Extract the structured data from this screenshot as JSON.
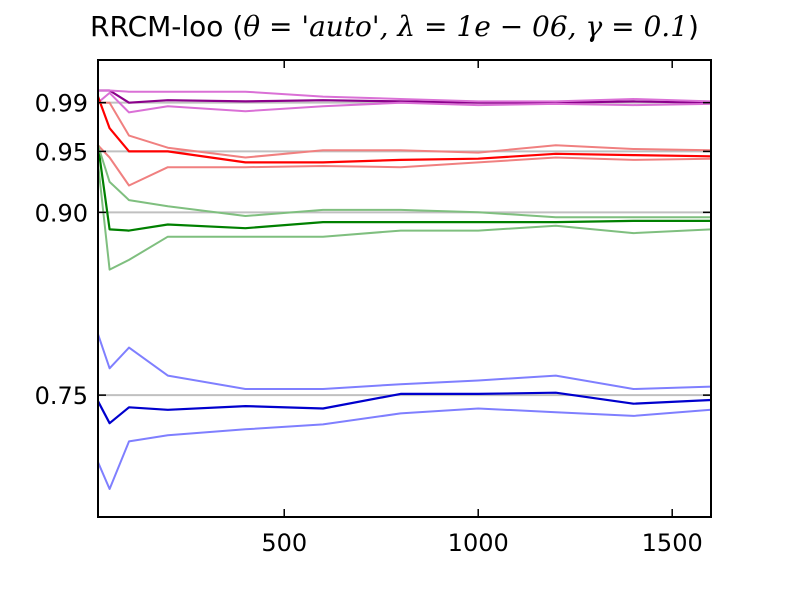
{
  "title": {
    "prefix": "RRCM-loo (",
    "math": "θ = 'auto', λ = 1e − 06, γ = 0.1",
    "suffix": ")"
  },
  "chart_data": {
    "type": "line",
    "title": "RRCM-loo (θ = 'auto', λ = 1e − 06, γ = 0.1)",
    "xlabel": "",
    "ylabel": "",
    "xlim": [
      20,
      1600
    ],
    "ylim": [
      0.65,
      1.025
    ],
    "x_ticks": [
      500,
      1000,
      1500
    ],
    "x_tick_labels": [
      "500",
      "1000",
      "1500"
    ],
    "y_ticks": [
      0.75,
      0.9,
      0.95,
      0.99
    ],
    "y_tick_labels": [
      "0.75",
      "0.90",
      "0.95",
      "0.99"
    ],
    "reference_lines": [
      0.75,
      0.9,
      0.95,
      0.99
    ],
    "grid": false,
    "x": [
      20,
      50,
      100,
      200,
      400,
      600,
      800,
      1000,
      1200,
      1400,
      1600
    ],
    "series": [
      {
        "color": "#8b008b",
        "opacity": 1.0,
        "width": 2.2,
        "values": [
          1.0,
          1.0,
          0.99,
          0.992,
          0.991,
          0.992,
          0.991,
          0.99,
          0.99,
          0.991,
          0.99
        ]
      },
      {
        "color": "#da70d6",
        "opacity": 1.0,
        "width": 2.0,
        "values": [
          1.0,
          1.0,
          0.999,
          0.999,
          0.999,
          0.995,
          0.993,
          0.991,
          0.991,
          0.993,
          0.991
        ]
      },
      {
        "color": "#da70d6",
        "opacity": 1.0,
        "width": 2.0,
        "values": [
          0.99,
          0.998,
          0.982,
          0.987,
          0.983,
          0.987,
          0.99,
          0.988,
          0.989,
          0.988,
          0.989
        ]
      },
      {
        "color": "#ff0000",
        "opacity": 1.0,
        "width": 2.2,
        "values": [
          0.995,
          0.969,
          0.95,
          0.95,
          0.941,
          0.941,
          0.943,
          0.944,
          0.948,
          0.947,
          0.946
        ]
      },
      {
        "color": "#f08080",
        "opacity": 1.0,
        "width": 2.0,
        "values": [
          0.99,
          0.99,
          0.963,
          0.953,
          0.945,
          0.951,
          0.951,
          0.949,
          0.955,
          0.952,
          0.951
        ]
      },
      {
        "color": "#f08080",
        "opacity": 1.0,
        "width": 2.0,
        "values": [
          0.955,
          0.945,
          0.922,
          0.937,
          0.937,
          0.938,
          0.937,
          0.941,
          0.945,
          0.943,
          0.944
        ]
      },
      {
        "color": "#008000",
        "opacity": 1.0,
        "width": 2.2,
        "values": [
          0.955,
          0.886,
          0.885,
          0.89,
          0.887,
          0.892,
          0.892,
          0.892,
          0.892,
          0.893,
          0.893
        ]
      },
      {
        "color": "#7fbf7f",
        "opacity": 1.0,
        "width": 2.0,
        "values": [
          0.955,
          0.925,
          0.91,
          0.905,
          0.897,
          0.902,
          0.902,
          0.9,
          0.896,
          0.896,
          0.896
        ]
      },
      {
        "color": "#7fbf7f",
        "opacity": 1.0,
        "width": 2.0,
        "values": [
          0.94,
          0.853,
          0.861,
          0.88,
          0.88,
          0.88,
          0.885,
          0.885,
          0.889,
          0.883,
          0.886
        ]
      },
      {
        "color": "#0000cd",
        "opacity": 1.0,
        "width": 2.2,
        "values": [
          0.745,
          0.727,
          0.74,
          0.738,
          0.741,
          0.739,
          0.751,
          0.751,
          0.752,
          0.743,
          0.746
        ]
      },
      {
        "color": "#7f7fff",
        "opacity": 1.0,
        "width": 2.0,
        "values": [
          0.8,
          0.772,
          0.789,
          0.766,
          0.755,
          0.755,
          0.759,
          0.762,
          0.766,
          0.755,
          0.757
        ]
      },
      {
        "color": "#7f7fff",
        "opacity": 1.0,
        "width": 2.0,
        "values": [
          0.695,
          0.673,
          0.712,
          0.717,
          0.722,
          0.726,
          0.735,
          0.739,
          0.736,
          0.733,
          0.738
        ]
      }
    ]
  }
}
